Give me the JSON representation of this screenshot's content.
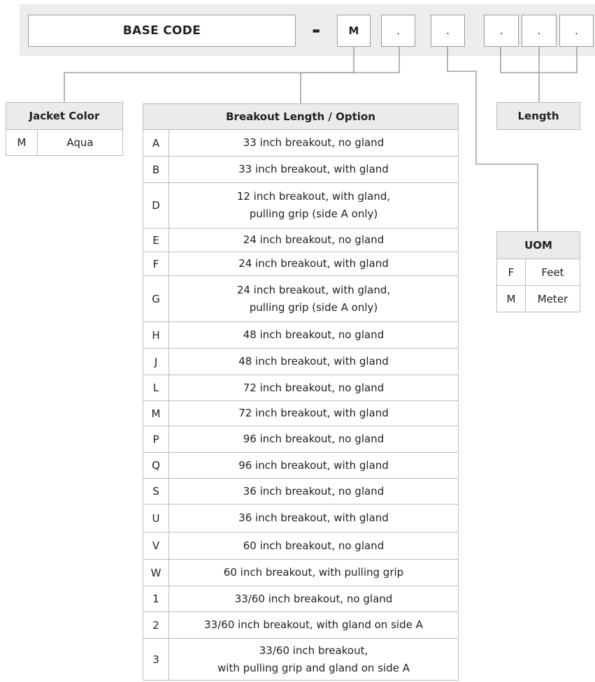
{
  "header": {
    "base_code": "BASE CODE",
    "dash": "-",
    "segments": [
      "M",
      ".",
      ".",
      ".",
      ".",
      "."
    ]
  },
  "jacket_color": {
    "title": "Jacket Color",
    "rows": [
      {
        "code": "M",
        "value": "Aqua"
      }
    ]
  },
  "breakout": {
    "title": "Breakout Length / Option",
    "rows": [
      {
        "code": "A",
        "lines": [
          "33 inch breakout, no gland"
        ]
      },
      {
        "code": "B",
        "lines": [
          "33 inch breakout, with gland"
        ]
      },
      {
        "code": "D",
        "lines": [
          "12 inch breakout, with gland,",
          "pulling grip (side A only)"
        ]
      },
      {
        "code": "E",
        "lines": [
          "24 inch breakout, no gland"
        ]
      },
      {
        "code": "F",
        "lines": [
          "24 inch breakout, with gland"
        ]
      },
      {
        "code": "G",
        "lines": [
          "24 inch breakout, with gland,",
          "pulling grip (side A only)"
        ]
      },
      {
        "code": "H",
        "lines": [
          "48 inch breakout, no gland"
        ]
      },
      {
        "code": "J",
        "lines": [
          "48 inch breakout, with gland"
        ]
      },
      {
        "code": "L",
        "lines": [
          "72 inch breakout, no gland"
        ]
      },
      {
        "code": "M",
        "lines": [
          "72 inch breakout, with gland"
        ]
      },
      {
        "code": "P",
        "lines": [
          "96 inch breakout, no gland"
        ]
      },
      {
        "code": "Q",
        "lines": [
          "96 inch breakout, with gland"
        ]
      },
      {
        "code": "S",
        "lines": [
          "36 inch breakout, no gland"
        ]
      },
      {
        "code": "U",
        "lines": [
          "36 inch breakout, with gland"
        ]
      },
      {
        "code": "V",
        "lines": [
          "60 inch breakout, no gland"
        ]
      },
      {
        "code": "W",
        "lines": [
          "60 inch breakout, with pulling grip"
        ]
      },
      {
        "code": "1",
        "lines": [
          "33/60 inch breakout, no gland"
        ]
      },
      {
        "code": "2",
        "lines": [
          "33/60 inch breakout, with gland on side A"
        ]
      },
      {
        "code": "3",
        "lines": [
          "33/60 inch breakout,",
          "with pulling grip and gland on side A"
        ]
      }
    ]
  },
  "length": {
    "title": "Length"
  },
  "uom": {
    "title": "UOM",
    "rows": [
      {
        "code": "F",
        "value": "Feet"
      },
      {
        "code": "M",
        "value": "Meter"
      }
    ]
  }
}
